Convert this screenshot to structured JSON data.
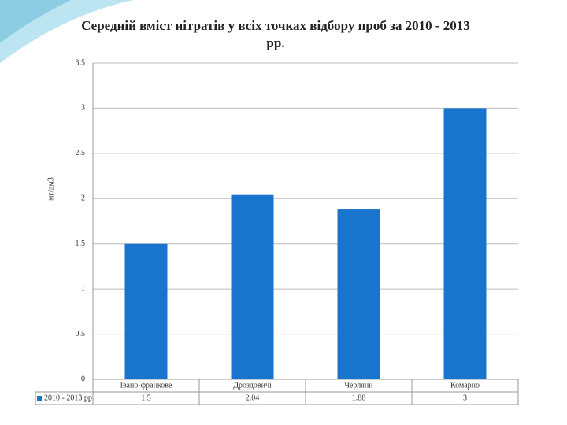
{
  "chart_data": {
    "type": "bar",
    "title": "Середній вміст нітратів у всіх точках відбору проб за 2010 - 2013 рр.",
    "y_label": "мг/дм3",
    "categories": [
      "Івано-франкове",
      "Дроздовичі",
      "Черляни",
      "Комарно"
    ],
    "series": [
      {
        "name": "2010 - 2013 рр.",
        "color": "#1874cd",
        "values": [
          1.5,
          2.04,
          1.88,
          3
        ]
      }
    ],
    "ylim": [
      0,
      3.5
    ],
    "yticks": [
      0,
      0.5,
      1,
      1.5,
      2,
      2.5,
      3,
      3.5
    ],
    "grid": true,
    "data_table": true
  }
}
